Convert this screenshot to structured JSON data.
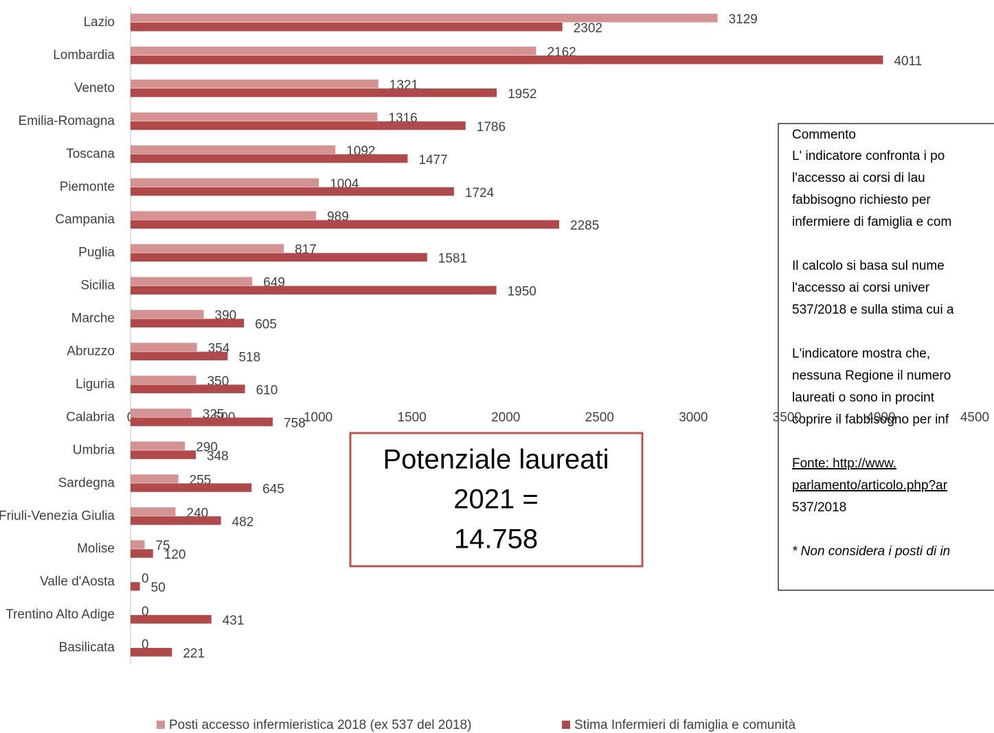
{
  "chart_data": {
    "type": "bar",
    "orientation": "horizontal",
    "categories": [
      "Lazio",
      "Lombardia",
      "Veneto",
      "Emilia-Romagna",
      "Toscana",
      "Piemonte",
      "Campania",
      "Puglia",
      "Sicilia",
      "Marche",
      "Abruzzo",
      "Liguria",
      "Calabria",
      "Umbria",
      "Sardegna",
      "Friuli-Venezia Giulia",
      "Molise",
      "Valle d'Aosta",
      "Trentino Alto Adige",
      "Basilicata"
    ],
    "series": [
      {
        "name": "Posti accesso infermieristica 2018 (ex 537 del 2018)",
        "color": "#d49392",
        "values": [
          3129,
          2162,
          1321,
          1316,
          1092,
          1004,
          989,
          817,
          649,
          390,
          354,
          350,
          325,
          290,
          255,
          240,
          75,
          0,
          0,
          0
        ]
      },
      {
        "name": "Stima Infermieri di famiglia e comunità",
        "color": "#b04a4a",
        "values": [
          2302,
          4011,
          1952,
          1786,
          1477,
          1724,
          2285,
          1581,
          1950,
          605,
          518,
          610,
          758,
          348,
          645,
          482,
          120,
          50,
          431,
          221
        ]
      }
    ],
    "xlim": [
      0,
      4500
    ],
    "xticks": [
      0,
      500,
      1000,
      1500,
      2000,
      2500,
      3000,
      3500,
      4000,
      4500
    ],
    "legend": "bottom",
    "annotation": [
      "Potenziale laureati",
      "2021 =",
      "14.758"
    ],
    "comment": {
      "title": "Commento",
      "paragraphs": [
        [
          "L' indicatore confronta i po",
          "l'accesso ai corsi di lau",
          "fabbisogno richiesto per",
          "infermiere di famiglia e com"
        ],
        [
          "Il calcolo si basa sul nume",
          "l'accesso ai corsi univer",
          "537/2018 e sulla stima cui a"
        ],
        [
          "L'indicatore mostra che,",
          "nessuna Regione il numero",
          "laureati o sono in procint",
          "coprire il fabbisogno per inf"
        ],
        [
          "Fonte:          http://www.",
          "parlamento/articolo.php?ar",
          "537/2018"
        ],
        [
          "* Non considera i posti di in"
        ]
      ]
    }
  }
}
